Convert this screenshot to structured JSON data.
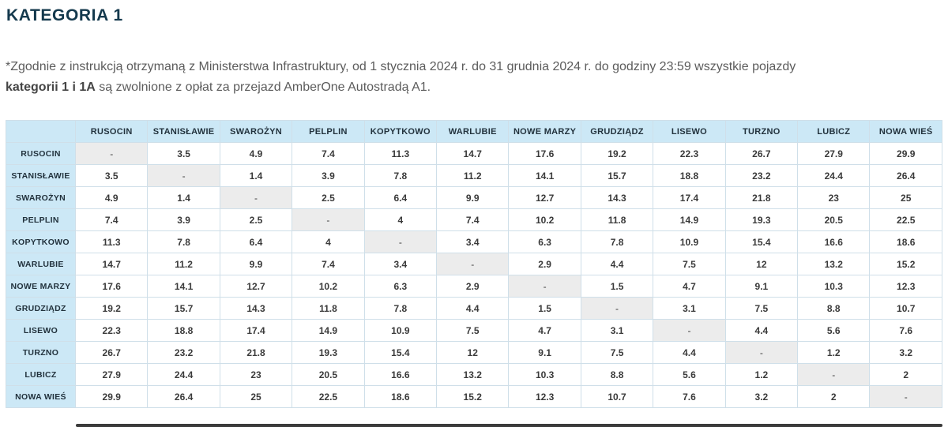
{
  "page": {
    "title": "KATEGORIA 1"
  },
  "note": {
    "part1": "*Zgodnie z instrukcją otrzymaną z Ministerstwa Infrastruktury, od 1 stycznia 2024 r.  do 31 grudnia 2024 r. do godziny 23:59 wszystkie pojazdy ",
    "bold": "kategorii 1 i 1A",
    "part2": " są zwolnione z opłat za przejazd AmberOne Autostradą A1."
  },
  "table": {
    "corner_label": "",
    "stations": [
      "RUSOCIN",
      "STANISŁAWIE",
      "SWAROŻYN",
      "PELPLIN",
      "KOPYTKOWO",
      "WARLUBIE",
      "NOWE MARZY",
      "GRUDZIĄDZ",
      "LISEWO",
      "TURZNO",
      "LUBICZ",
      "NOWA WIEŚ"
    ],
    "empty_marker": "-",
    "matrix": [
      [
        "-",
        3.5,
        4.9,
        7.4,
        11.3,
        14.7,
        17.6,
        19.2,
        22.3,
        26.7,
        27.9,
        29.9
      ],
      [
        3.5,
        "-",
        1.4,
        3.9,
        7.8,
        11.2,
        14.1,
        15.7,
        18.8,
        23.2,
        24.4,
        26.4
      ],
      [
        4.9,
        1.4,
        "-",
        2.5,
        6.4,
        9.9,
        12.7,
        14.3,
        17.4,
        21.8,
        23,
        25
      ],
      [
        7.4,
        3.9,
        2.5,
        "-",
        4,
        7.4,
        10.2,
        11.8,
        14.9,
        19.3,
        20.5,
        22.5
      ],
      [
        11.3,
        7.8,
        6.4,
        4,
        "-",
        3.4,
        6.3,
        7.8,
        10.9,
        15.4,
        16.6,
        18.6
      ],
      [
        14.7,
        11.2,
        9.9,
        7.4,
        3.4,
        "-",
        2.9,
        4.4,
        7.5,
        12,
        13.2,
        15.2
      ],
      [
        17.6,
        14.1,
        12.7,
        10.2,
        6.3,
        2.9,
        "-",
        1.5,
        4.7,
        9.1,
        10.3,
        12.3
      ],
      [
        19.2,
        15.7,
        14.3,
        11.8,
        7.8,
        4.4,
        1.5,
        "-",
        3.1,
        7.5,
        8.8,
        10.7
      ],
      [
        22.3,
        18.8,
        17.4,
        14.9,
        10.9,
        7.5,
        4.7,
        3.1,
        "-",
        4.4,
        5.6,
        7.6
      ],
      [
        26.7,
        23.2,
        21.8,
        19.3,
        15.4,
        12,
        9.1,
        7.5,
        4.4,
        "-",
        1.2,
        3.2
      ],
      [
        27.9,
        24.4,
        23,
        20.5,
        16.6,
        13.2,
        10.3,
        8.8,
        5.6,
        1.2,
        "-",
        2
      ],
      [
        29.9,
        26.4,
        25,
        22.5,
        18.6,
        15.2,
        12.3,
        10.7,
        7.6,
        3.2,
        2,
        "-"
      ]
    ]
  },
  "colors": {
    "title": "#14394d",
    "header_bg": "#cce8f6",
    "diagonal_bg": "#ececec",
    "border": "#cfdfe9",
    "text": "#5c5c5c",
    "value_text": "#3a3a3a",
    "bottom_strip": "#3b3b3b"
  }
}
